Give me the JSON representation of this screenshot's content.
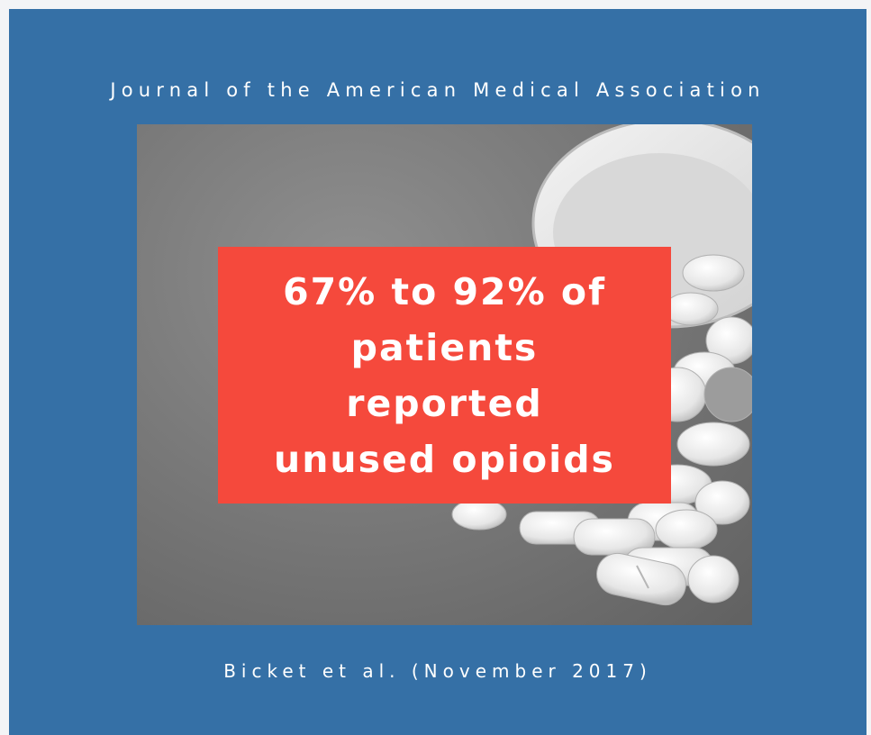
{
  "header": {
    "journal": "Journal of the American Medical Association"
  },
  "callout": {
    "lines": [
      "67% to 92% of",
      "patients",
      "reported",
      "unused opioids"
    ]
  },
  "footer": {
    "citation": "Bicket et al. (November 2017)"
  },
  "colors": {
    "card_background": "#3570a6",
    "callout_background": "#f5493c",
    "text": "#ffffff"
  }
}
